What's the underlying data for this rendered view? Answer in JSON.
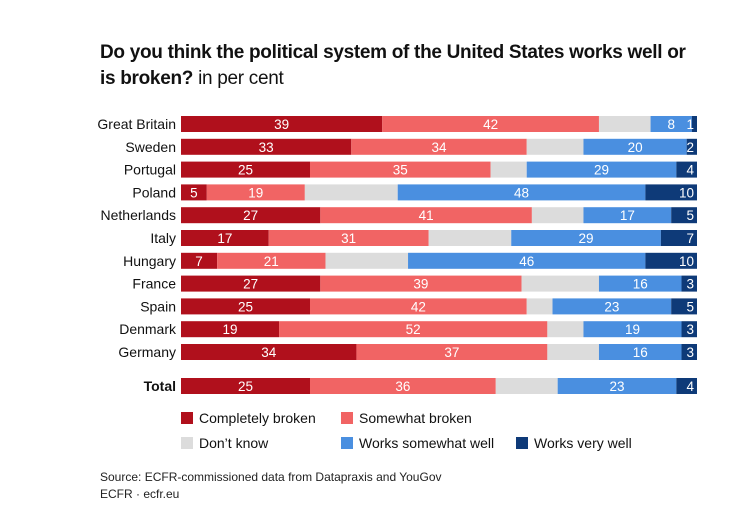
{
  "chart_data": {
    "type": "bar",
    "orientation": "horizontal",
    "stacked": true,
    "title": "Do you think the political system of the United States works well or is broken?",
    "subtitle": "in per cent",
    "categories": [
      "Great Britain",
      "Sweden",
      "Portugal",
      "Poland",
      "Netherlands",
      "Italy",
      "Hungary",
      "France",
      "Spain",
      "Denmark",
      "Germany",
      "Total"
    ],
    "series": [
      {
        "name": "Completely broken",
        "color": "#b0101c",
        "values": [
          39,
          33,
          25,
          5,
          27,
          17,
          7,
          27,
          25,
          19,
          34,
          25
        ],
        "labeled": true
      },
      {
        "name": "Somewhat broken",
        "color": "#f16464",
        "values": [
          42,
          34,
          35,
          19,
          41,
          31,
          21,
          39,
          42,
          52,
          37,
          36
        ],
        "labeled": true
      },
      {
        "name": "Don’t know",
        "color": "#dcdcdc",
        "values": [
          10,
          11,
          7,
          18,
          10,
          16,
          16,
          15,
          5,
          7,
          10,
          12
        ],
        "labeled": false
      },
      {
        "name": "Works somewhat well",
        "color": "#4a8fe0",
        "values": [
          8,
          20,
          29,
          48,
          17,
          29,
          46,
          16,
          23,
          19,
          16,
          23
        ],
        "labeled": true
      },
      {
        "name": "Works very well",
        "color": "#0e3a78",
        "values": [
          1,
          2,
          4,
          10,
          5,
          7,
          10,
          3,
          5,
          3,
          3,
          4
        ],
        "labeled": true
      }
    ],
    "xlim": [
      0,
      100
    ],
    "grid": false,
    "legend_position": "bottom"
  },
  "source": "Source: ECFR-commissioned data from Datapraxis and YouGov",
  "credit": "ECFR · ecfr.eu"
}
